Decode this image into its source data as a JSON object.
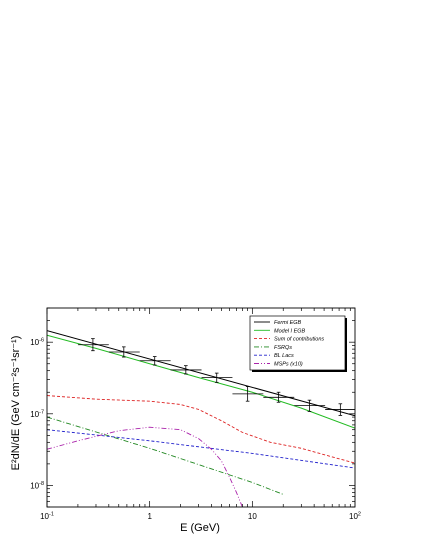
{
  "chart_data": {
    "type": "line",
    "title": "",
    "xlabel": "E (GeV)",
    "ylabel": "E²dN/dE (GeV cm⁻²s⁻¹sr⁻¹)",
    "xscale": "log",
    "yscale": "log",
    "xlim": [
      0.1,
      100
    ],
    "ylim": [
      5e-09,
      3e-06
    ],
    "grid": false,
    "legend_position": "top-right",
    "x_ticks": [
      {
        "value": 0.1,
        "base": "10",
        "exp": "-1"
      },
      {
        "value": 1,
        "base": "1",
        "exp": ""
      },
      {
        "value": 10,
        "base": "10",
        "exp": ""
      },
      {
        "value": 100,
        "base": "10",
        "exp": "2"
      }
    ],
    "y_ticks": [
      {
        "value": 1e-08,
        "base": "10",
        "exp": "-8"
      },
      {
        "value": 1e-07,
        "base": "10",
        "exp": "-7"
      },
      {
        "value": 1e-06,
        "base": "10",
        "exp": "-6"
      }
    ],
    "series": [
      {
        "name": "Fermi EGB",
        "color": "#000000",
        "dash": "solid",
        "points": [
          [
            0.1,
            1.45e-06
          ],
          [
            100,
            9.4e-08
          ]
        ]
      },
      {
        "name": "Model I EGB",
        "color": "#22bb22",
        "dash": "solid",
        "points": [
          [
            0.1,
            1.25e-06
          ],
          [
            0.3,
            8.2e-07
          ],
          [
            1,
            5e-07
          ],
          [
            3,
            3.2e-07
          ],
          [
            10,
            2e-07
          ],
          [
            30,
            1.2e-07
          ],
          [
            100,
            6.3e-08
          ]
        ]
      },
      {
        "name": "Sum of contributions",
        "color": "#dd2222",
        "dash": "dashed",
        "points": [
          [
            0.1,
            1.8e-07
          ],
          [
            0.3,
            1.6e-07
          ],
          [
            1,
            1.5e-07
          ],
          [
            2,
            1.35e-07
          ],
          [
            3,
            1.15e-07
          ],
          [
            5,
            8e-08
          ],
          [
            8,
            5.5e-08
          ],
          [
            15,
            4e-08
          ],
          [
            30,
            3.3e-08
          ],
          [
            60,
            2.5e-08
          ],
          [
            100,
            2.05e-08
          ]
        ]
      },
      {
        "name": "FSRQs",
        "color": "#228822",
        "dash": "dashdot",
        "points": [
          [
            0.1,
            9e-08
          ],
          [
            1,
            3.3e-08
          ],
          [
            10,
            1.1e-08
          ],
          [
            20,
            7.5e-09
          ]
        ]
      },
      {
        "name": "BL Lacs",
        "color": "#2222cc",
        "dash": "dashed",
        "points": [
          [
            0.1,
            6e-08
          ],
          [
            1,
            4.2e-08
          ],
          [
            10,
            2.8e-08
          ],
          [
            100,
            1.75e-08
          ]
        ]
      },
      {
        "name": "MSPs (x10)",
        "color": "#aa22aa",
        "dash": "dashdotdot",
        "points": [
          [
            0.1,
            3.2e-08
          ],
          [
            0.2,
            4.2e-08
          ],
          [
            0.5,
            5.8e-08
          ],
          [
            1,
            6.5e-08
          ],
          [
            2,
            6e-08
          ],
          [
            3,
            4.5e-08
          ],
          [
            4,
            3.2e-08
          ],
          [
            5,
            2.2e-08
          ],
          [
            6,
            1.3e-08
          ],
          [
            7,
            8e-09
          ],
          [
            8,
            5e-09
          ]
        ]
      }
    ],
    "error_bars": {
      "series": "Fermi EGB",
      "points": [
        {
          "x": 0.28,
          "y": 9.2e-07,
          "xlo": 0.2,
          "xhi": 0.4,
          "ylo": 7.6e-07,
          "yhi": 1.12e-06
        },
        {
          "x": 0.56,
          "y": 7.3e-07,
          "xlo": 0.4,
          "xhi": 0.8,
          "ylo": 6.2e-07,
          "yhi": 8.6e-07
        },
        {
          "x": 1.12,
          "y": 5.5e-07,
          "xlo": 0.8,
          "xhi": 1.6,
          "ylo": 4.8e-07,
          "yhi": 6.3e-07
        },
        {
          "x": 2.25,
          "y": 4.1e-07,
          "xlo": 1.6,
          "xhi": 3.2,
          "ylo": 3.6e-07,
          "yhi": 4.7e-07
        },
        {
          "x": 4.5,
          "y": 3.2e-07,
          "xlo": 3.2,
          "xhi": 6.4,
          "ylo": 2.75e-07,
          "yhi": 3.7e-07
        },
        {
          "x": 9.0,
          "y": 1.9e-07,
          "xlo": 6.4,
          "xhi": 12.8,
          "ylo": 1.5e-07,
          "yhi": 2.4e-07
        },
        {
          "x": 18,
          "y": 1.7e-07,
          "xlo": 12.8,
          "xhi": 25.6,
          "ylo": 1.45e-07,
          "yhi": 2e-07
        },
        {
          "x": 36,
          "y": 1.3e-07,
          "xlo": 25.6,
          "xhi": 51.2,
          "ylo": 1.08e-07,
          "yhi": 1.55e-07
        },
        {
          "x": 72,
          "y": 1.15e-07,
          "xlo": 51.2,
          "xhi": 100,
          "ylo": 9.5e-08,
          "yhi": 1.38e-07
        }
      ]
    }
  }
}
